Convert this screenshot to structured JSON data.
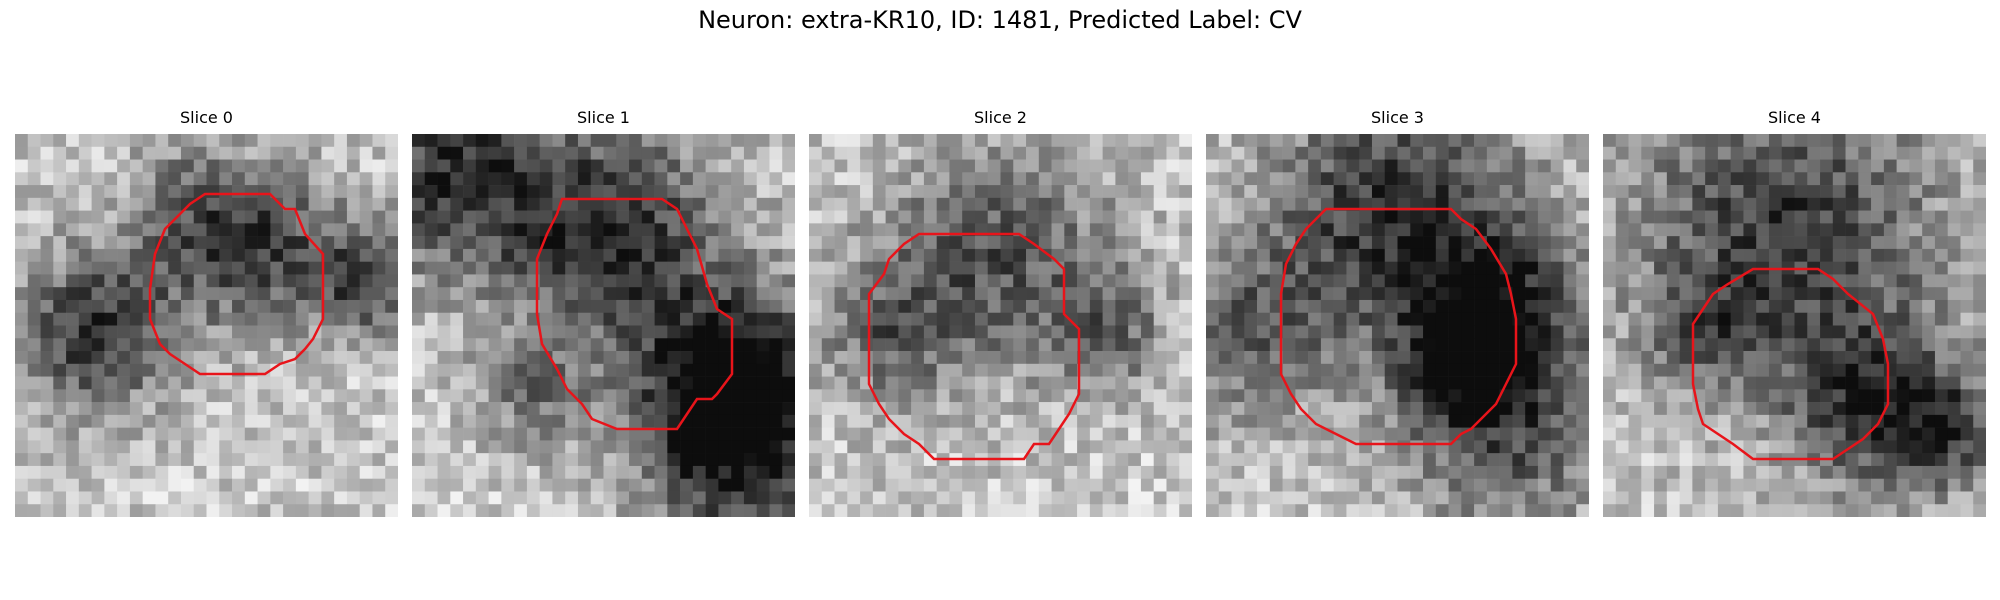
{
  "figure": {
    "title": "Neuron: extra-KR10, ID: 1481, Predicted Label: CV"
  },
  "panels": [
    {
      "title": "Slice 0"
    },
    {
      "title": "Slice 1"
    },
    {
      "title": "Slice 2"
    },
    {
      "title": "Slice 3"
    },
    {
      "title": "Slice 4"
    }
  ],
  "colors": {
    "contour": "#e8141a",
    "colormap": "grayscale"
  }
}
